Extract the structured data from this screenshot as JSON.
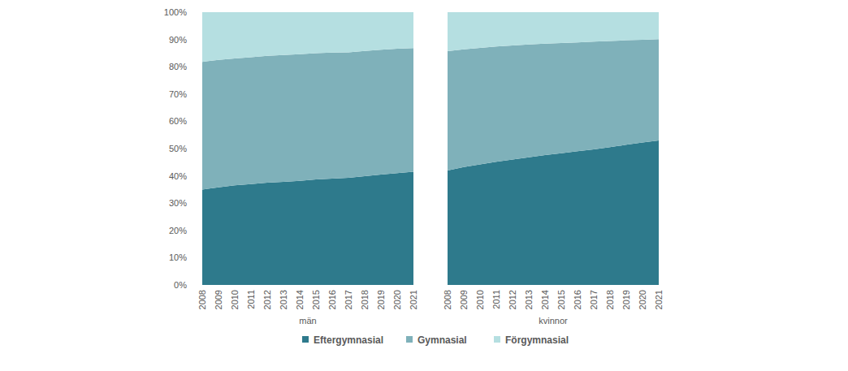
{
  "chart_data": [
    {
      "type": "area",
      "stacked": true,
      "xlabel": "män",
      "legend": "bottom",
      "grid": false,
      "categories": [
        "2008",
        "2009",
        "2010",
        "2011",
        "2012",
        "2013",
        "2014",
        "2015",
        "2016",
        "2017",
        "2018",
        "2019",
        "2020",
        "2021"
      ],
      "ylim": [
        0,
        100
      ],
      "yticks": [
        {
          "value": 0,
          "label": "0%"
        },
        {
          "value": 10,
          "label": "10%"
        },
        {
          "value": 20,
          "label": "20%"
        },
        {
          "value": 30,
          "label": "30%"
        },
        {
          "value": 40,
          "label": "40%"
        },
        {
          "value": 50,
          "label": "50%"
        },
        {
          "value": 60,
          "label": "60%"
        },
        {
          "value": 70,
          "label": "70%"
        },
        {
          "value": 80,
          "label": "80%"
        },
        {
          "value": 90,
          "label": "90%"
        },
        {
          "value": 100,
          "label": "100%"
        }
      ],
      "series": [
        {
          "name": "Eftergymnasial",
          "color": "#2e7a8c",
          "values": [
            35,
            35.8,
            36.5,
            37,
            37.5,
            37.8,
            38.2,
            38.7,
            39,
            39.3,
            39.9,
            40.5,
            41,
            41.5
          ]
        },
        {
          "name": "Gymnasial",
          "color": "#7fb1ba",
          "values": [
            46.8,
            46.7,
            46.5,
            46.5,
            46.5,
            46.5,
            46.4,
            46.3,
            46.2,
            46,
            45.9,
            45.7,
            45.6,
            45.3
          ]
        },
        {
          "name": "Förgymnasial",
          "color": "#b5dfe1",
          "values": [
            18.2,
            17.5,
            17,
            16.5,
            16,
            15.7,
            15.4,
            15,
            14.8,
            14.7,
            14.2,
            13.8,
            13.4,
            13.2
          ]
        }
      ]
    },
    {
      "type": "area",
      "stacked": true,
      "xlabel": "kvinnor",
      "grid": false,
      "tick_labels": "x",
      "categories": [
        "2008",
        "2009",
        "2010",
        "2011",
        "2012",
        "2013",
        "2014",
        "2015",
        "2016",
        "2017",
        "2018",
        "2019",
        "2020",
        "2021"
      ],
      "ylim": [
        0,
        100
      ],
      "series": [
        {
          "name": "Eftergymnasial",
          "color": "#2e7a8c",
          "values": [
            42,
            43.2,
            44.2,
            45.2,
            46,
            46.8,
            47.6,
            48.3,
            49,
            49.7,
            50.5,
            51.4,
            52.2,
            53
          ]
        },
        {
          "name": "Gymnasial",
          "color": "#7fb1ba",
          "values": [
            43.7,
            43.2,
            42.7,
            42.2,
            41.8,
            41.4,
            40.9,
            40.4,
            39.9,
            39.5,
            38.9,
            38.3,
            37.7,
            37.1
          ]
        },
        {
          "name": "Förgymnasial",
          "color": "#b5dfe1",
          "values": [
            14.3,
            13.6,
            13.1,
            12.6,
            12.2,
            11.8,
            11.5,
            11.3,
            11.1,
            10.8,
            10.6,
            10.3,
            10.1,
            9.9
          ]
        }
      ]
    }
  ]
}
